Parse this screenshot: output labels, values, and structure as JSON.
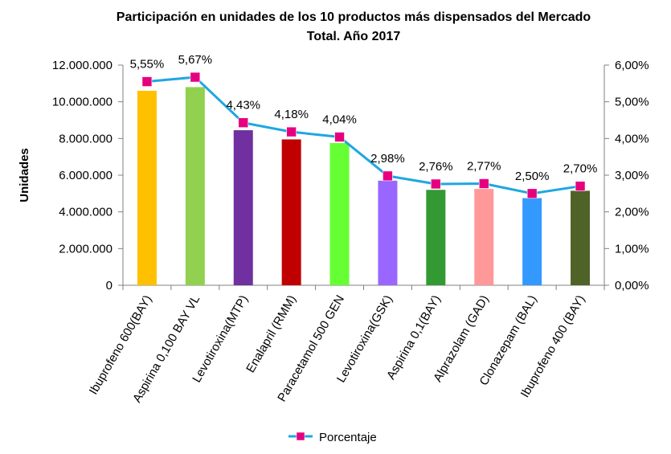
{
  "chart_data": {
    "type": "bar",
    "title": "Participación en unidades de los 10 productos más dispensados  del Mercado Total. Año 2017",
    "title_lines": [
      "Participación en unidades de los 10 productos más dispensados  del Mercado",
      "Total. Año 2017"
    ],
    "ylabel": "Unidades",
    "ylim": [
      0,
      12000000
    ],
    "y2lim": [
      0,
      0.06
    ],
    "y_ticks": [
      "0",
      "2.000.000",
      "4.000.000",
      "6.000.000",
      "8.000.000",
      "10.000.000",
      "12.000.000"
    ],
    "y2_ticks": [
      "0,00%",
      "1,00%",
      "2,00%",
      "3,00%",
      "4,00%",
      "5,00%",
      "6,00%"
    ],
    "categories": [
      "Ibuprofeno 600(BAY)",
      "Aspirina 0,100 BAY VL",
      "Levotiroxina(MTP)",
      "Enalapril (RMM)",
      "Paracetamol 500 GEN",
      "Levotiroxina(GSK)",
      "Aspirina 0,1(BAY)",
      "Alprazolam (GAD)",
      "Clonazepam (BAL)",
      "Ibuprofeno 400 (BAY)"
    ],
    "series": [
      {
        "kind": "bar",
        "axis": "left",
        "values": [
          10600000,
          10800000,
          8450000,
          7950000,
          7750000,
          5700000,
          5200000,
          5250000,
          4750000,
          5150000
        ],
        "colors": [
          "#FFC000",
          "#92D050",
          "#7030A0",
          "#C00000",
          "#66FF33",
          "#9966FF",
          "#339933",
          "#FF9999",
          "#3399FF",
          "#4F6228"
        ]
      },
      {
        "kind": "line",
        "axis": "right",
        "name": "Porcentaje",
        "values": [
          0.0555,
          0.0567,
          0.0443,
          0.0418,
          0.0404,
          0.0298,
          0.0276,
          0.0277,
          0.025,
          0.027
        ],
        "labels": [
          "5,55%",
          "5,67%",
          "4,43%",
          "4,18%",
          "4,04%",
          "2,98%",
          "2,76%",
          "2,77%",
          "2,50%",
          "2,70%"
        ],
        "line_color": "#1EA7E1",
        "marker_color": "#E6007E"
      }
    ],
    "legend": {
      "position": "bottom",
      "entries": [
        "Porcentaje"
      ]
    },
    "grid": false
  }
}
